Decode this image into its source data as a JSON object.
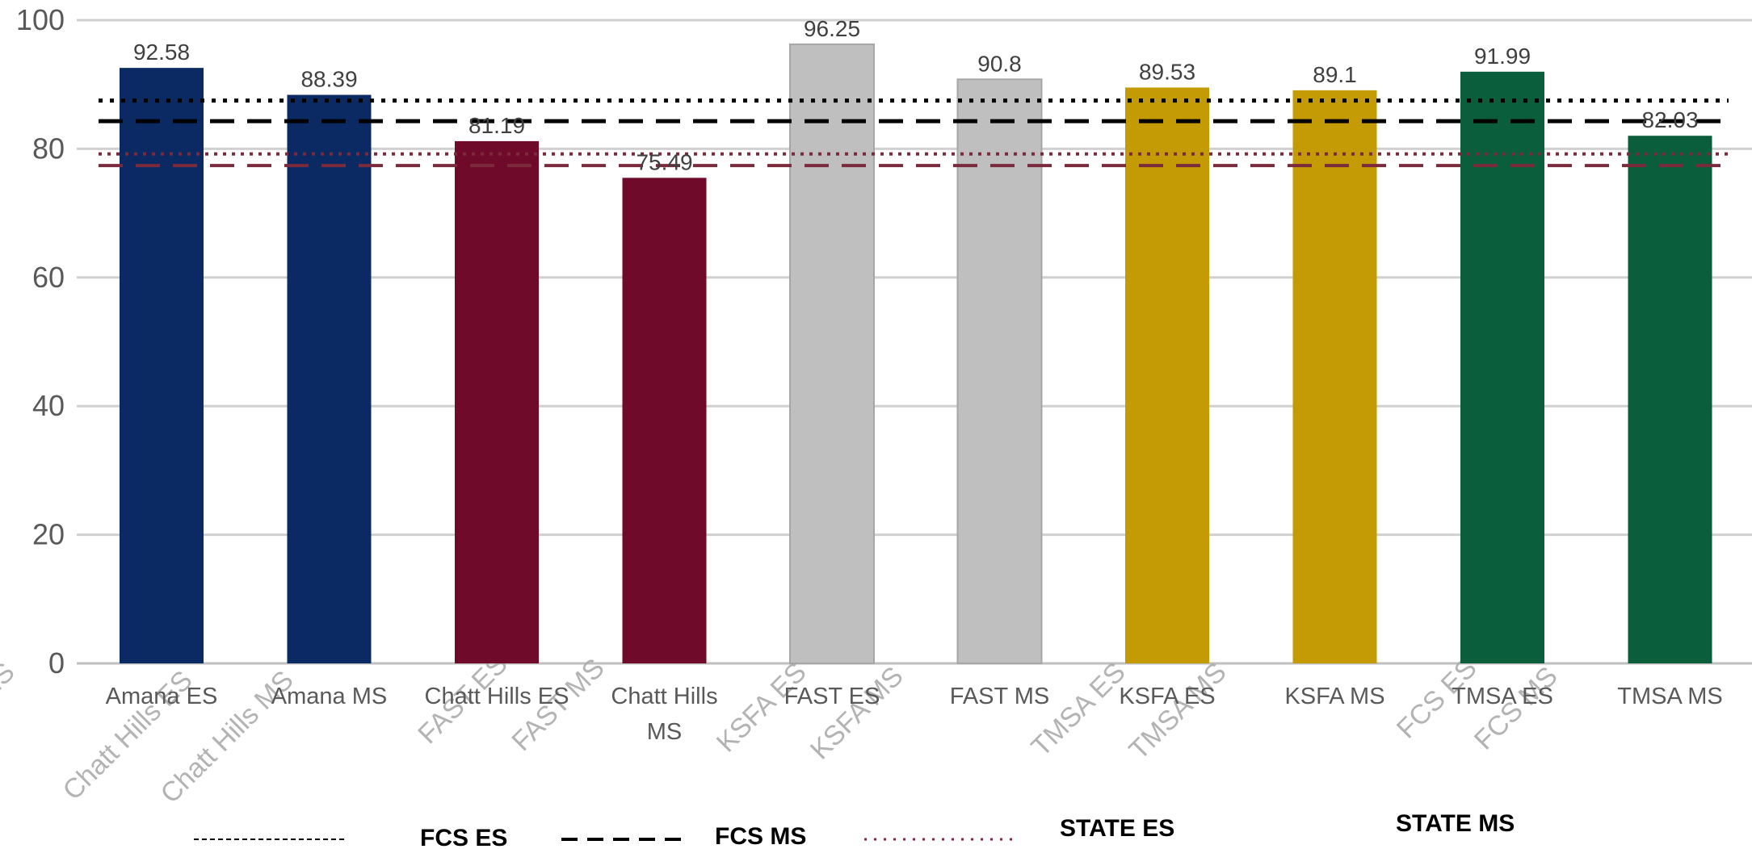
{
  "chart_data": {
    "type": "bar",
    "categories": [
      "Amana ES",
      "Amana MS",
      "Chatt Hills ES",
      "Chatt Hills MS",
      "FAST ES",
      "FAST MS",
      "KSFA ES",
      "KSFA MS",
      "TMSA ES",
      "TMSA MS"
    ],
    "values": [
      92.58,
      88.39,
      81.19,
      75.49,
      96.25,
      90.8,
      89.53,
      89.1,
      91.99,
      82.03
    ],
    "data_labels": [
      "92.58",
      "88.39",
      "81.19",
      "75.49",
      "96.25",
      "90.8",
      "89.53",
      "89.1",
      "91.99",
      "82.03"
    ],
    "bar_colors": [
      "#0b2a63",
      "#0b2a63",
      "#6f0a2a",
      "#6f0a2a",
      "#bfbfbf",
      "#bfbfbf",
      "#c49b05",
      "#c49b05",
      "#0b5e3b",
      "#0b5e3b"
    ],
    "ylim": [
      0,
      100
    ],
    "yticks": [
      "0",
      "20",
      "40",
      "60",
      "80",
      "100"
    ],
    "grid": true,
    "reference_lines": [
      {
        "name": "FCS ES",
        "value": 87.5,
        "style": "dotted",
        "color": "#000000"
      },
      {
        "name": "FCS MS",
        "value": 84.3,
        "style": "dashed",
        "color": "#000000"
      },
      {
        "name": "STATE ES",
        "value": 79.2,
        "style": "dotted",
        "color": "#7b2a3c"
      },
      {
        "name": "STATE MS",
        "value": 77.4,
        "style": "dashed",
        "color": "#7b2a3c"
      }
    ],
    "ghost_labels": [
      "MS",
      "Chatt Hills ES",
      "Chatt Hills MS",
      "FAST ES",
      "FAST MS",
      "KSFA ES",
      "KSFA MS",
      "TMSA ES",
      "TMSA MS",
      "FCS ES",
      "FCS MS"
    ],
    "legend": {
      "position": "bottom",
      "items": [
        {
          "label": "FCS ES",
          "style": "dotted-small",
          "color": "#000000"
        },
        {
          "label": "FCS MS",
          "style": "dashed",
          "color": "#000000"
        },
        {
          "label": "STATE ES",
          "style": "dotted",
          "color": "#7b2a3c"
        },
        {
          "label": "STATE MS",
          "style": "none",
          "color": "#7b2a3c"
        }
      ]
    }
  }
}
